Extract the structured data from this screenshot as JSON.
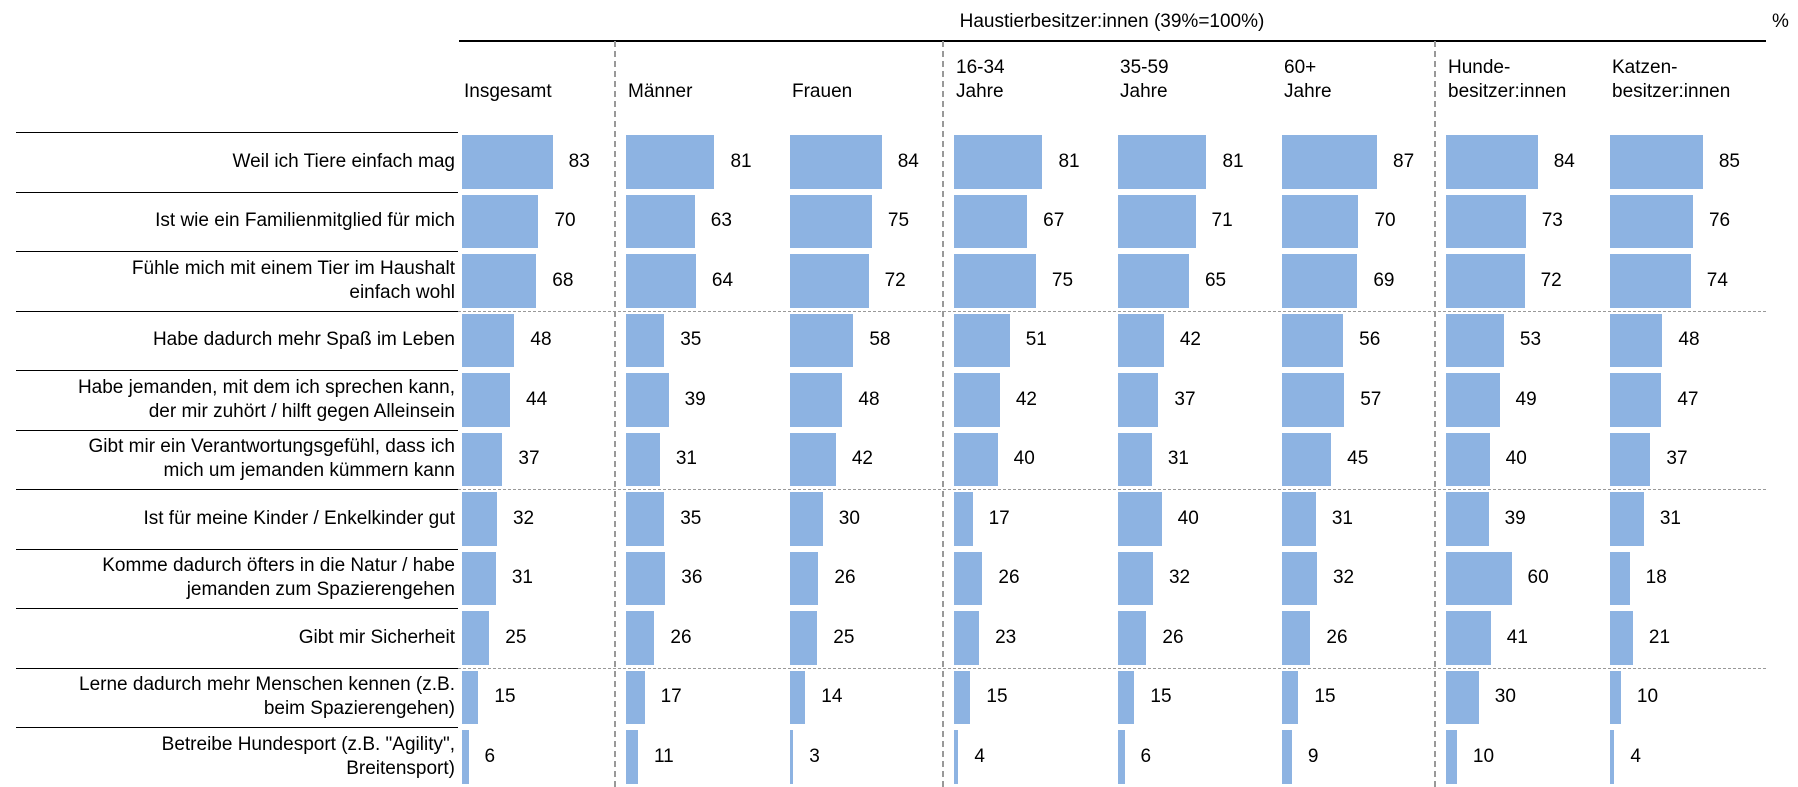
{
  "chart_data": {
    "type": "bar",
    "title": "Haustierbesitzer:innen (39%=100%)",
    "unit": "%",
    "categories": [
      "Weil ich Tiere einfach mag",
      "Ist wie ein Familienmitglied für mich",
      "Fühle mich mit einem Tier im Haushalt\neinfach wohl",
      "Habe dadurch mehr Spaß im Leben",
      "Habe jemanden, mit dem ich sprechen kann,\nder mir zuhört / hilft gegen Alleinsein",
      "Gibt mir ein Verantwortungsgefühl, dass ich\nmich um jemanden kümmern kann",
      "Ist für meine Kinder / Enkelkinder gut",
      "Komme dadurch öfters in die Natur / habe\njemanden zum Spazierengehen",
      "Gibt mir Sicherheit",
      "Lerne dadurch mehr Menschen kennen (z.B.\nbeim Spazierengehen)",
      "Betreibe Hundesport (z.B. \"Agility\",\nBreitensport)"
    ],
    "series": [
      {
        "name": "Insgesamt",
        "color": "#8db3e2",
        "values": [
          83,
          70,
          68,
          48,
          44,
          37,
          32,
          31,
          25,
          15,
          6
        ]
      },
      {
        "name": "Männer",
        "color": "#8db3e2",
        "values": [
          81,
          63,
          64,
          35,
          39,
          31,
          35,
          36,
          26,
          17,
          11
        ]
      },
      {
        "name": "Frauen",
        "color": "#8db3e2",
        "values": [
          84,
          75,
          72,
          58,
          48,
          42,
          30,
          26,
          25,
          14,
          3
        ]
      },
      {
        "name": "16-34\nJahre",
        "color": "#8db3e2",
        "values": [
          81,
          67,
          75,
          51,
          42,
          40,
          17,
          26,
          23,
          15,
          4
        ]
      },
      {
        "name": "35-59\nJahre",
        "color": "#8db3e2",
        "values": [
          81,
          71,
          65,
          42,
          37,
          31,
          40,
          32,
          26,
          15,
          6
        ]
      },
      {
        "name": "60+\nJahre",
        "color": "#8db3e2",
        "values": [
          87,
          70,
          69,
          56,
          57,
          45,
          31,
          32,
          26,
          15,
          9
        ]
      },
      {
        "name": "Hunde-\nbesitzer:innen",
        "color": "#8db3e2",
        "values": [
          84,
          73,
          72,
          53,
          49,
          40,
          39,
          60,
          41,
          30,
          10
        ]
      },
      {
        "name": "Katzen-\nbesitzer:innen",
        "color": "#8db3e2",
        "values": [
          85,
          76,
          74,
          48,
          47,
          37,
          31,
          18,
          21,
          10,
          4
        ]
      }
    ]
  }
}
